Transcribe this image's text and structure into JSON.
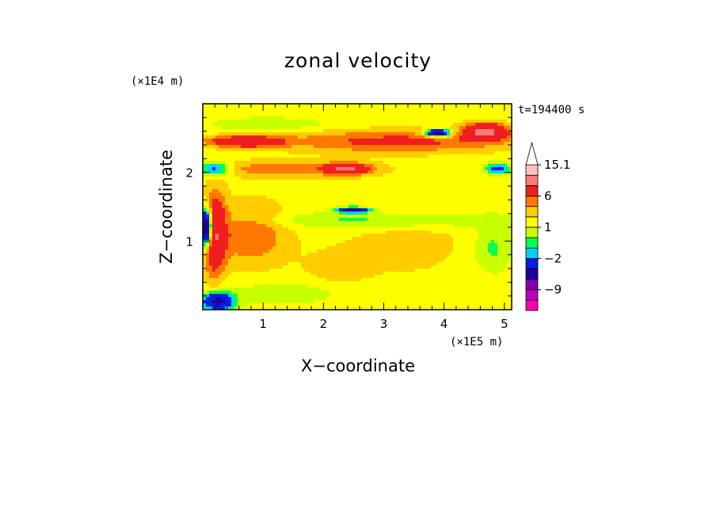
{
  "chart_data": {
    "type": "heatmap",
    "title": "zonal velocity",
    "xlabel": "X−coordinate",
    "ylabel": "Z−coordinate",
    "x_unit": "(×1E5 m)",
    "y_unit": "(×1E4 m)",
    "time_label": "t=194400 s",
    "xlim": [
      0,
      5.12
    ],
    "ylim": [
      0,
      3.0
    ],
    "x_ticks": [
      1,
      2,
      3,
      4,
      5
    ],
    "y_ticks": [
      1,
      2
    ],
    "x_tick_labels": [
      "1",
      "2",
      "3",
      "4",
      "5"
    ],
    "y_tick_labels": [
      "1",
      "2"
    ],
    "colorbar": {
      "levels": [
        -15,
        -12,
        -9,
        -6,
        -3,
        -2,
        -1,
        0,
        1,
        2,
        3,
        6,
        9,
        12,
        15.1
      ],
      "colors": [
        "#ff00b4",
        "#c000c0",
        "#8000b0",
        "#2000a0",
        "#0020e0",
        "#00d2ff",
        "#00ff50",
        "#c8ff00",
        "#ffff00",
        "#ffcc00",
        "#ff7800",
        "#f01e1e",
        "#ff7a7a",
        "#ffbfbf",
        "#ffffff"
      ],
      "labels": [
        {
          "value": 15.1,
          "text": "15.1"
        },
        {
          "value": 6,
          "text": "6"
        },
        {
          "value": 1,
          "text": "1"
        },
        {
          "value": -2,
          "text": "−2"
        },
        {
          "value": -9,
          "text": "−9"
        }
      ],
      "extend_max": true
    },
    "background_value": 0.5,
    "field_features": [
      {
        "x": 3.4,
        "z": 1.0,
        "rx": 1.05,
        "rz": 0.55,
        "amp": 0.9
      },
      {
        "x": 2.2,
        "z": 0.55,
        "rx": 0.6,
        "rz": 0.35,
        "amp": 0.9
      },
      {
        "x": 3.2,
        "z": 2.45,
        "rx": 1.9,
        "rz": 0.16,
        "amp": 3.0
      },
      {
        "x": 1.4,
        "z": 2.05,
        "rx": 1.4,
        "rz": 0.12,
        "amp": 2.2
      },
      {
        "x": 2.4,
        "z": 2.05,
        "rx": 0.35,
        "rz": 0.08,
        "amp": 5.0
      },
      {
        "x": 0.7,
        "z": 2.45,
        "rx": 0.6,
        "rz": 0.08,
        "amp": 5.0
      },
      {
        "x": 4.7,
        "z": 2.6,
        "rx": 0.35,
        "rz": 0.12,
        "amp": 6.0
      },
      {
        "x": 0.2,
        "z": 1.1,
        "rx": 0.18,
        "rz": 0.6,
        "amp": 5.0
      },
      {
        "x": 0.8,
        "z": 1.1,
        "rx": 0.6,
        "rz": 0.45,
        "amp": 2.5
      },
      {
        "x": 0.05,
        "z": 1.2,
        "rx": 0.1,
        "rz": 0.25,
        "amp": -12.0
      },
      {
        "x": 0.25,
        "z": 0.12,
        "rx": 0.25,
        "rz": 0.12,
        "amp": -8.0
      },
      {
        "x": 0.2,
        "z": 2.05,
        "rx": 0.25,
        "rz": 0.1,
        "amp": -5.0
      },
      {
        "x": 3.9,
        "z": 2.57,
        "rx": 0.2,
        "rz": 0.05,
        "amp": -10.0
      },
      {
        "x": 2.5,
        "z": 1.45,
        "rx": 0.25,
        "rz": 0.04,
        "amp": -8.0
      },
      {
        "x": 4.9,
        "z": 2.05,
        "rx": 0.2,
        "rz": 0.08,
        "amp": -4.5
      },
      {
        "x": 3.0,
        "z": 1.3,
        "rx": 2.0,
        "rz": 0.12,
        "amp": -2.0
      },
      {
        "x": 4.8,
        "z": 0.9,
        "rx": 0.3,
        "rz": 0.35,
        "amp": -1.8
      },
      {
        "x": 1.5,
        "z": 0.25,
        "rx": 1.2,
        "rz": 0.18,
        "amp": -1.2
      },
      {
        "x": 1.1,
        "z": 2.7,
        "rx": 1.0,
        "rz": 0.1,
        "amp": -1.3
      }
    ]
  }
}
